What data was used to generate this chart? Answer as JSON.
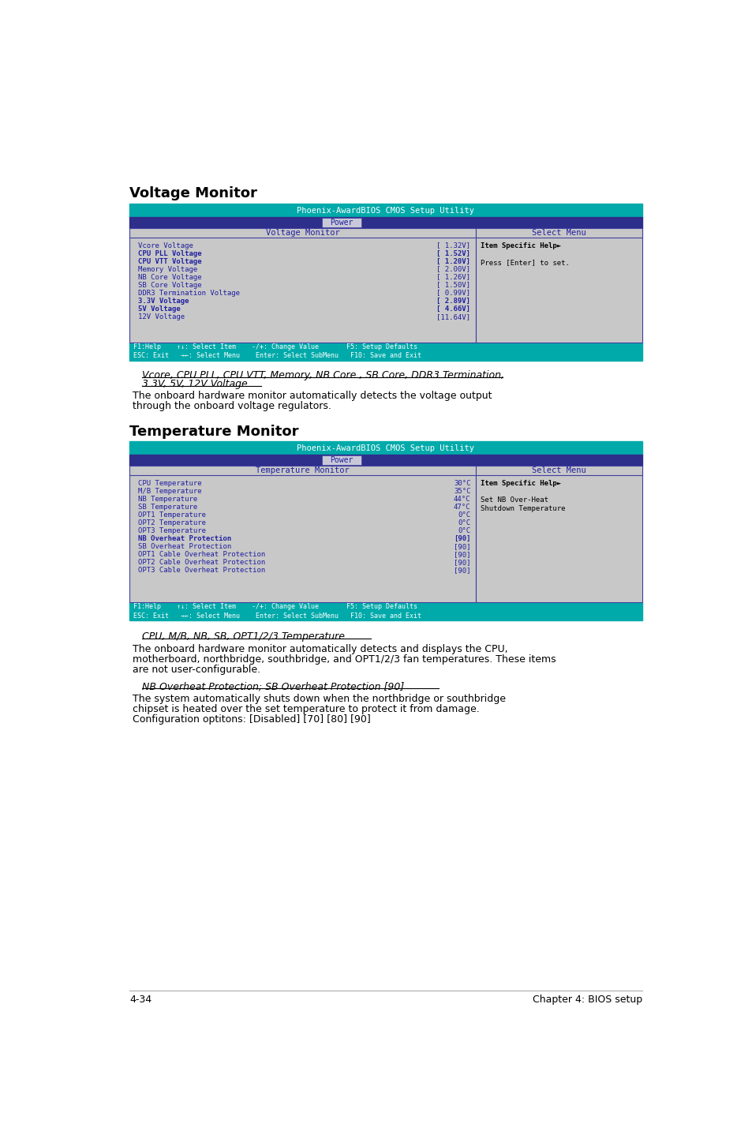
{
  "bg_color": "#ffffff",
  "teal_header": "#00AAAA",
  "dark_blue_bar": "#2E2E8B",
  "light_blue_tab": "#C8C8D8",
  "panel_bg": "#C8C8C8",
  "panel_border": "#4040A0",
  "text_blue": "#2020A0",
  "text_black": "#000000",
  "section1_heading": "Voltage Monitor",
  "section2_heading": "Temperature Monitor",
  "bios_title": "Phoenix-AwardBIOS CMOS Setup Utility",
  "power_label": "Power",
  "voltage_monitor_label": "Voltage Monitor",
  "select_menu_label": "Select Menu",
  "temp_monitor_label": "Temperature Monitor",
  "voltage_items": [
    [
      "Vcore Voltage",
      "[ 1.32V]",
      false
    ],
    [
      "CPU PLL Voltage",
      "[ 1.52V]",
      true
    ],
    [
      "CPU VTT Voltage",
      "[ 1.20V]",
      true
    ],
    [
      "Memory Voltage",
      "[ 2.00V]",
      false
    ],
    [
      "NB Core Voltage",
      "[ 1.26V]",
      false
    ],
    [
      "SB Core Voltage",
      "[ 1.50V]",
      false
    ],
    [
      "DDR3 Termination Voltage",
      "[ 0.99V]",
      false
    ],
    [
      "3.3V Voltage",
      "[ 2.89V]",
      true
    ],
    [
      "5V Voltage",
      "[ 4.66V]",
      true
    ],
    [
      "12V Voltage",
      "[11.64V]",
      false
    ]
  ],
  "voltage_help": [
    "Item Specific Help►",
    "",
    "Press [Enter] to set."
  ],
  "temp_items": [
    [
      "CPU Temperature",
      "30°C",
      false
    ],
    [
      "M/B Temperature",
      "35°C",
      false
    ],
    [
      "NB Temperature",
      "44°C",
      false
    ],
    [
      "SB Temperature",
      "47°C",
      false
    ],
    [
      "OPT1 Temperature",
      "0°C",
      false
    ],
    [
      "OPT2 Temperature",
      "0°C",
      false
    ],
    [
      "OPT3 Temperature",
      "0°C",
      false
    ],
    [
      "NB Overheat Protection",
      "[90]",
      true
    ],
    [
      "SB Overheat Protection",
      "[90]",
      false
    ],
    [
      "OPT1 Cable Overheat Protection",
      "[90]",
      false
    ],
    [
      "OPT2 Cable Overheat Protection",
      "[90]",
      false
    ],
    [
      "OPT3 Cable Overheat Protection",
      "[90]",
      false
    ]
  ],
  "temp_help": [
    "Item Specific Help►",
    "",
    "Set NB Over-Heat",
    "Shutdown Temperature"
  ],
  "italic_title1": "Vcore, CPU PLL, CPU VTT, Memory, NB Core , SB Core, DDR3 Termination,",
  "italic_title1b": "3.3V, 5V, 12V Voltage",
  "italic_body1a": "The onboard hardware monitor automatically detects the voltage output",
  "italic_body1b": "through the onboard voltage regulators.",
  "italic_title2": "CPU, M/B, NB, SB, OPT1/2/3 Temperature",
  "italic_body2a": "The onboard hardware monitor automatically detects and displays the CPU,",
  "italic_body2b": "motherboard, northbridge, southbridge, and OPT1/2/3 fan temperatures. These items",
  "italic_body2c": "are not user-configurable.",
  "italic_title3": "NB Overheat Protection; SB Overheat Protection [90]",
  "italic_body3a": "The system automatically shuts down when the northbridge or southbridge",
  "italic_body3b": "chipset is heated over the set temperature to protect it from damage.",
  "italic_body3c": "Configuration optitons: [Disabled] [70] [80] [90]",
  "footer_left": "4-34",
  "footer_right": "Chapter 4: BIOS setup"
}
